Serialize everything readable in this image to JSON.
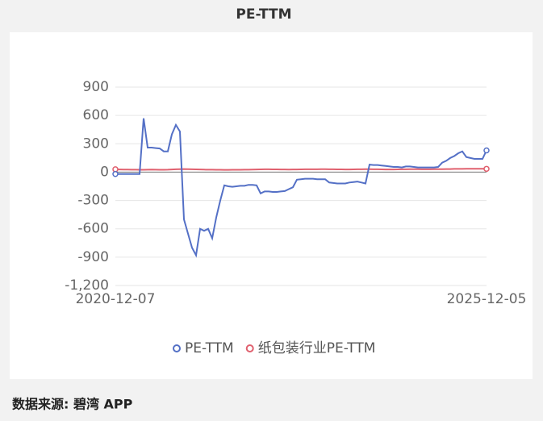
{
  "chart_data": {
    "type": "line",
    "title": "PE-TTM",
    "source": "数据来源: 碧湾 APP",
    "categories": [
      "2020-12-07",
      null,
      null,
      null,
      null,
      null,
      null,
      null,
      null,
      null,
      null,
      null,
      null,
      null,
      null,
      null,
      null,
      null,
      null,
      null,
      null,
      null,
      null,
      null,
      null,
      null,
      null,
      null,
      null,
      null,
      null,
      null,
      null,
      null,
      null,
      null,
      null,
      null,
      null,
      null,
      null,
      null,
      null,
      null,
      null,
      null,
      null,
      null,
      null,
      null,
      null,
      null,
      null,
      null,
      null,
      null,
      null,
      null,
      null,
      null,
      null,
      null,
      null,
      null,
      null,
      null,
      null,
      null,
      null,
      null,
      null,
      null,
      null,
      null,
      null,
      null,
      null,
      null,
      null,
      null,
      null,
      null,
      null,
      null,
      null,
      null,
      null,
      null,
      null,
      null,
      null,
      null,
      "2025-12-05"
    ],
    "series": [
      {
        "name": "PE-TTM",
        "color": "#5470c6",
        "values": [
          -20,
          -20,
          -20,
          -20,
          -20,
          -20,
          -20,
          570,
          260,
          260,
          255,
          250,
          220,
          220,
          400,
          500,
          430,
          -500,
          -650,
          -800,
          -880,
          -600,
          -620,
          -600,
          -700,
          -480,
          -300,
          -140,
          -150,
          -155,
          -150,
          -145,
          -145,
          -135,
          -135,
          -140,
          -225,
          -205,
          -205,
          -210,
          -210,
          -205,
          -200,
          -180,
          -160,
          -80,
          -75,
          -70,
          -70,
          -70,
          -75,
          -75,
          -75,
          -110,
          -115,
          -120,
          -120,
          -120,
          -110,
          -105,
          -100,
          -110,
          -120,
          80,
          75,
          75,
          70,
          65,
          60,
          55,
          55,
          50,
          60,
          60,
          55,
          50,
          50,
          50,
          50,
          50,
          55,
          100,
          120,
          150,
          170,
          200,
          220,
          160,
          150,
          140,
          140,
          140,
          230
        ]
      },
      {
        "name": "纸包装行业PE-TTM",
        "color": "#e0606e",
        "values": [
          30,
          28,
          27,
          27,
          26,
          26,
          25,
          25,
          26,
          27,
          26,
          25,
          25,
          26,
          28,
          30,
          32,
          33,
          32,
          30,
          29,
          28,
          27,
          26,
          26,
          25,
          25,
          24,
          24,
          25,
          25,
          25,
          26,
          26,
          27,
          28,
          29,
          30,
          30,
          29,
          29,
          28,
          28,
          27,
          28,
          28,
          29,
          30,
          30,
          30,
          30,
          31,
          31,
          30,
          30,
          29,
          29,
          28,
          28,
          29,
          30,
          30,
          31,
          31,
          30,
          30,
          29,
          28,
          28,
          28,
          29,
          30,
          30,
          31,
          31,
          31,
          30,
          30,
          30,
          31,
          32,
          32,
          33,
          33,
          34,
          34,
          34,
          35,
          35,
          35,
          35,
          35,
          35
        ]
      }
    ],
    "ylim": [
      -1200,
      900
    ],
    "yticks": [
      {
        "value": -1200,
        "label": "-1,200"
      },
      -900,
      -600,
      -300,
      0,
      300,
      600,
      900
    ],
    "grid": true
  }
}
